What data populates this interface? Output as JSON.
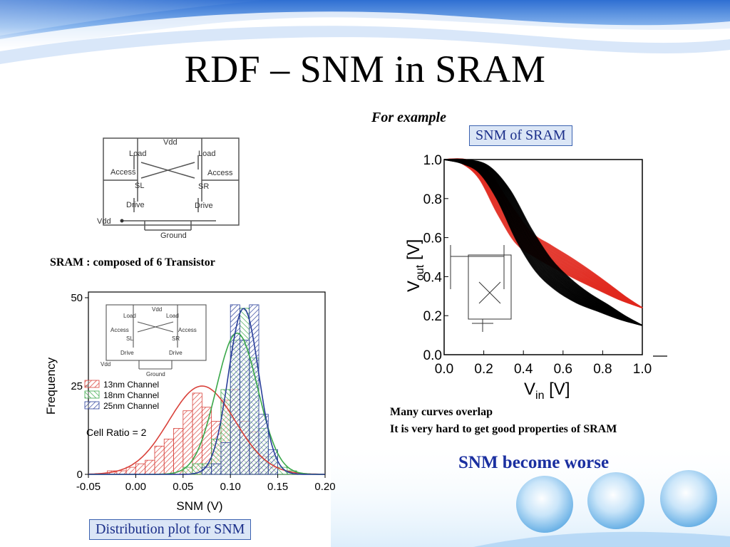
{
  "slide": {
    "title": "RDF – SNM in SRAM",
    "for_example": "For example",
    "snm_box_label": "SNM of SRAM",
    "sram_caption": "SRAM : composed of 6 Transistor",
    "overlap_line1": "Many curves overlap",
    "overlap_line2": "It is very hard to get good properties of SRAM",
    "snm_worse": "SNM become worse",
    "distribution_box_label": "Distribution plot for SNM",
    "colors": {
      "title": "#000000",
      "accent_text": "#1a2fa0",
      "box_fill": "#dbe6f6",
      "box_border": "#3b62b0"
    }
  },
  "schematic": {
    "labels": [
      "Vdd",
      "Load",
      "Load",
      "Access",
      "Access",
      "SL",
      "SR",
      "Drive",
      "Drive",
      "Vdd",
      "Ground"
    ]
  },
  "inset_schematic": {
    "labels": [
      "Vdd",
      "Load",
      "Load",
      "Access",
      "Access",
      "SL",
      "SR",
      "Drive",
      "Drive",
      "Vdd",
      "Ground"
    ]
  },
  "chart_data": [
    {
      "type": "bar",
      "title": "",
      "xlabel": "SNM (V)",
      "ylabel": "Frequency",
      "xlim": [
        -0.05,
        0.2
      ],
      "ylim": [
        0,
        50
      ],
      "x_ticks": [
        "-0.05",
        "0.00",
        "0.05",
        "0.10",
        "0.15",
        "0.20"
      ],
      "y_ticks": [
        "0",
        "25",
        "50"
      ],
      "annotation": "Cell Ratio = 2",
      "legend_position": "left-middle",
      "series": [
        {
          "name": "13nm Channel",
          "color": "#d9413a",
          "bins": [
            [
              -0.03,
              1
            ],
            [
              -0.02,
              1
            ],
            [
              -0.01,
              2
            ],
            [
              0.0,
              3
            ],
            [
              0.01,
              4
            ],
            [
              0.02,
              8
            ],
            [
              0.03,
              10
            ],
            [
              0.04,
              13
            ],
            [
              0.05,
              18
            ],
            [
              0.06,
              23
            ],
            [
              0.07,
              19
            ],
            [
              0.08,
              15
            ],
            [
              0.09,
              21
            ],
            [
              0.1,
              24
            ],
            [
              0.11,
              15
            ],
            [
              0.12,
              12
            ],
            [
              0.13,
              5
            ],
            [
              0.14,
              2
            ]
          ],
          "fit": {
            "mean": 0.07,
            "sd": 0.035,
            "peak": 25
          }
        },
        {
          "name": "18nm Channel",
          "color": "#3aa84a",
          "bins": [
            [
              0.05,
              2
            ],
            [
              0.06,
              3
            ],
            [
              0.07,
              3
            ],
            [
              0.08,
              10
            ],
            [
              0.09,
              24
            ],
            [
              0.1,
              38
            ],
            [
              0.11,
              47
            ],
            [
              0.12,
              33
            ],
            [
              0.13,
              13
            ],
            [
              0.14,
              5
            ],
            [
              0.15,
              2
            ],
            [
              0.16,
              1
            ]
          ],
          "fit": {
            "mean": 0.107,
            "sd": 0.022,
            "peak": 40
          }
        },
        {
          "name": "25nm Channel",
          "color": "#2a3f9a",
          "bins": [
            [
              0.07,
              2
            ],
            [
              0.08,
              3
            ],
            [
              0.09,
              9
            ],
            [
              0.1,
              48
            ],
            [
              0.11,
              38
            ],
            [
              0.12,
              48
            ],
            [
              0.13,
              17
            ],
            [
              0.14,
              7
            ]
          ],
          "fit": {
            "mean": 0.114,
            "sd": 0.016,
            "peak": 47
          }
        }
      ]
    },
    {
      "type": "line",
      "title": "",
      "xlabel": "V",
      "xlabel_sub": "in",
      "xlabel_unit": " [V]",
      "ylabel": "V",
      "ylabel_sub": "out",
      "ylabel_unit": " [V]",
      "xlim": [
        0,
        1
      ],
      "ylim": [
        0,
        1
      ],
      "x_ticks": [
        "0.0",
        "0.2",
        "0.4",
        "0.6",
        "0.8",
        "1.0"
      ],
      "y_ticks": [
        "0.0",
        "0.2",
        "0.4",
        "0.6",
        "0.8",
        "1.0"
      ],
      "series": [
        {
          "name": "",
          "color": "#e0291f",
          "points": [
            [
              0,
              1.0
            ],
            [
              0.1,
              0.99
            ],
            [
              0.2,
              0.92
            ],
            [
              0.3,
              0.75
            ],
            [
              0.4,
              0.6
            ],
            [
              0.5,
              0.53
            ],
            [
              0.6,
              0.47
            ],
            [
              0.7,
              0.41
            ],
            [
              0.8,
              0.35
            ],
            [
              0.9,
              0.29
            ],
            [
              1.0,
              0.24
            ]
          ]
        },
        {
          "name": "",
          "color": "#000000",
          "points": [
            [
              0,
              1.0
            ],
            [
              0.1,
              0.99
            ],
            [
              0.2,
              0.95
            ],
            [
              0.3,
              0.82
            ],
            [
              0.4,
              0.62
            ],
            [
              0.5,
              0.46
            ],
            [
              0.6,
              0.36
            ],
            [
              0.7,
              0.29
            ],
            [
              0.8,
              0.24
            ],
            [
              0.9,
              0.19
            ],
            [
              1.0,
              0.15
            ]
          ]
        }
      ]
    }
  ]
}
